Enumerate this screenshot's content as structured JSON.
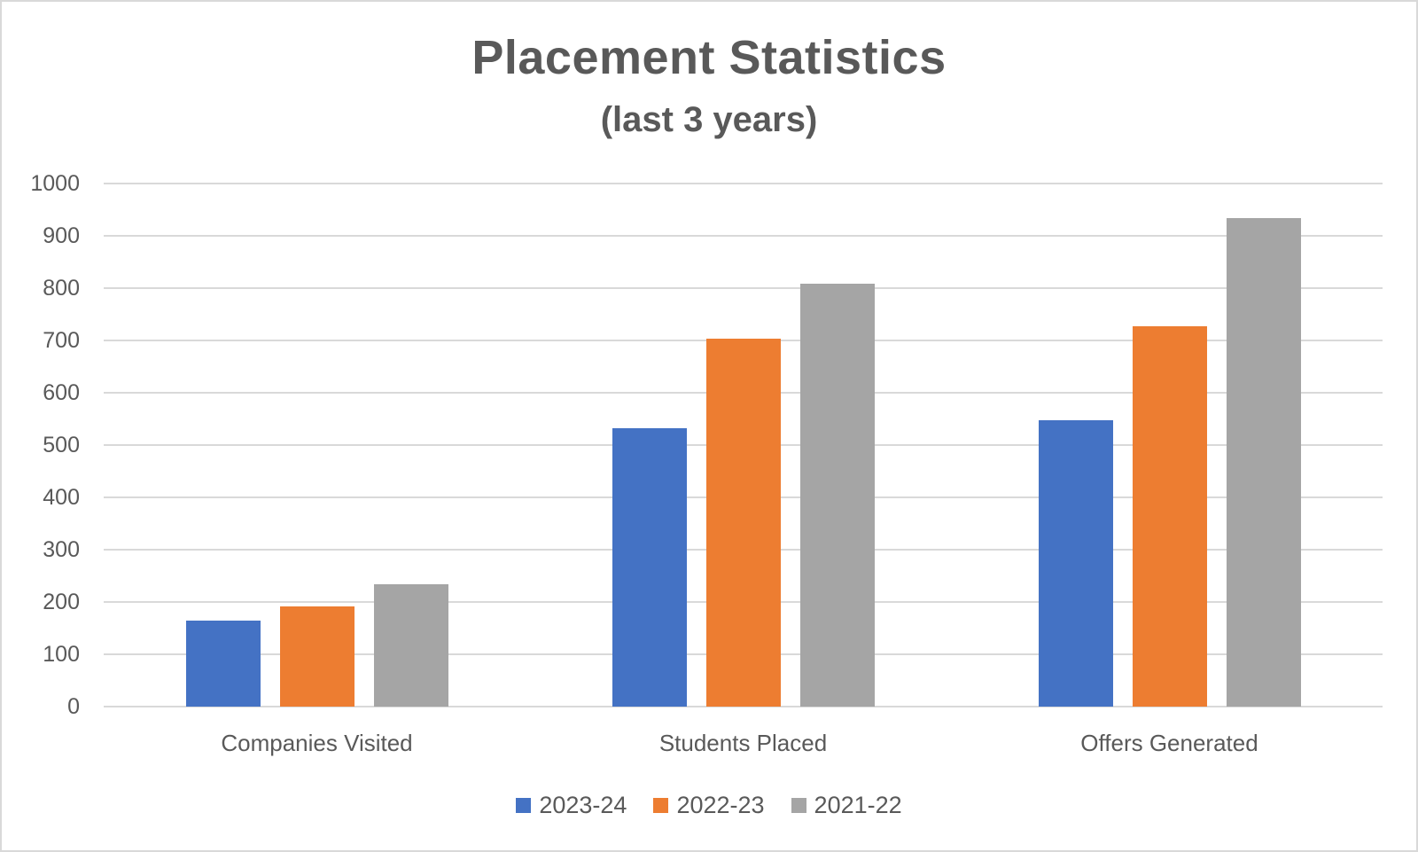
{
  "chart_data": {
    "type": "bar",
    "title": "Placement Statistics",
    "subtitle": "(last 3 years)",
    "xlabel": "",
    "ylabel": "",
    "categories": [
      "Companies Visited",
      "Students Placed",
      "Offers Generated"
    ],
    "series": [
      {
        "name": "2023-24",
        "color": "#4472c4",
        "values": [
          164,
          532,
          547
        ]
      },
      {
        "name": "2022-23",
        "color": "#ed7d31",
        "values": [
          192,
          703,
          727
        ]
      },
      {
        "name": "2021-22",
        "color": "#a5a5a5",
        "values": [
          234,
          808,
          934
        ]
      }
    ],
    "ylim": [
      0,
      1000
    ],
    "yticks": [
      "0",
      "100",
      "200",
      "300",
      "400",
      "500",
      "600",
      "700",
      "800",
      "900",
      "1000"
    ],
    "grid": true,
    "legend_position": "bottom"
  },
  "colors": {
    "text": "#595959",
    "grid": "#d9d9d9"
  }
}
